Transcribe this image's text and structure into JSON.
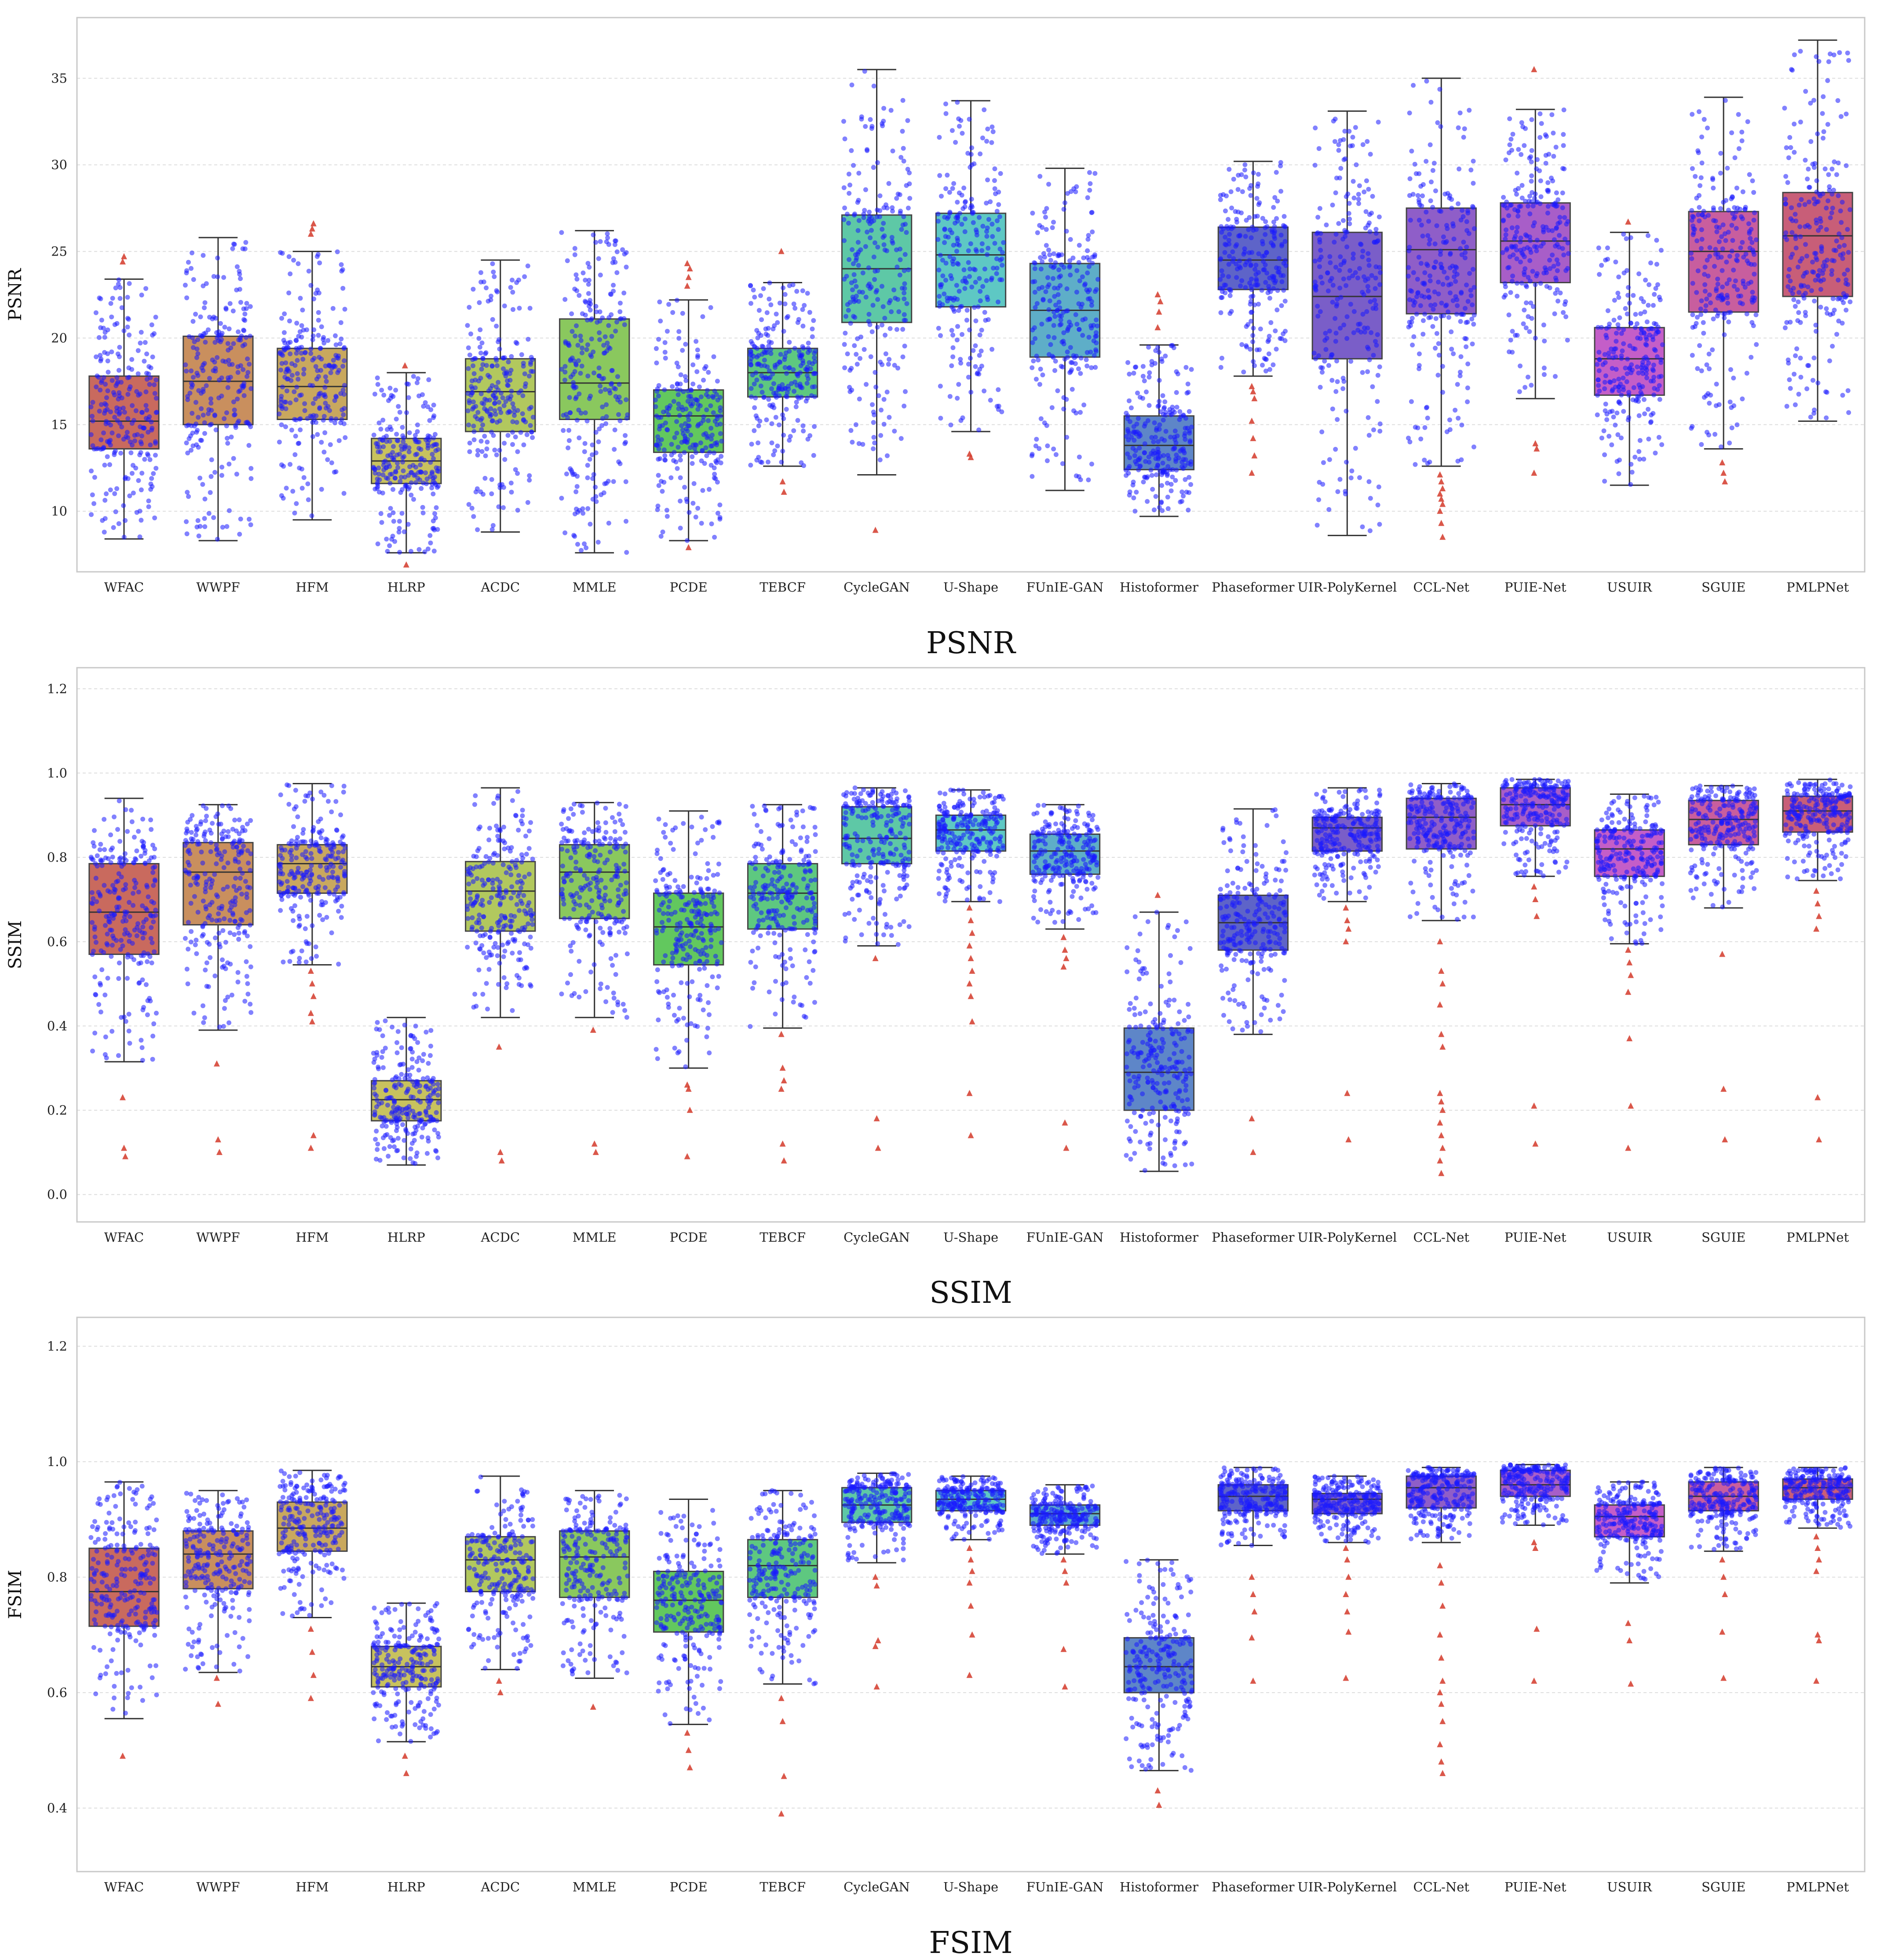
{
  "chart_data": [
    {
      "type": "box",
      "title": "PSNR",
      "ylabel": "PSNR",
      "ylim": [
        6.5,
        38.5
      ],
      "yticks": [
        10,
        15,
        20,
        25,
        30,
        35
      ],
      "grid": true,
      "categories": [
        "WFAC",
        "WWPF",
        "HFM",
        "HLRP",
        "ACDC",
        "MMLE",
        "PCDE",
        "TEBCF",
        "CycleGAN",
        "U-Shape",
        "FUnIE-GAN",
        "Histoformer",
        "Phaseformer",
        "UIR-PolyKernel",
        "CCL-Net",
        "PUIE-Net",
        "USUIR",
        "SGUIE",
        "PMLPNet"
      ],
      "colors": [
        "#c96a5e",
        "#c98f5e",
        "#c9a85e",
        "#c8c25e",
        "#b2c85e",
        "#8ac85e",
        "#62c85e",
        "#5ec880",
        "#5ec8a6",
        "#5ec8c4",
        "#5eaec8",
        "#5e86c8",
        "#5e64c8",
        "#7a5ec8",
        "#8f5ec8",
        "#a85ec8",
        "#c45ec8",
        "#c85e9e",
        "#c85e78"
      ],
      "series": [
        {
          "name": "WFAC",
          "q1": 13.6,
          "median": 15.2,
          "q3": 17.8,
          "whislo": 8.4,
          "whishi": 23.4,
          "outliers": [
            24.4,
            24.7
          ]
        },
        {
          "name": "WWPF",
          "q1": 15.0,
          "median": 17.5,
          "q3": 20.1,
          "whislo": 8.3,
          "whishi": 25.8,
          "outliers": []
        },
        {
          "name": "HFM",
          "q1": 15.3,
          "median": 17.2,
          "q3": 19.4,
          "whislo": 9.5,
          "whishi": 25.0,
          "outliers": [
            26.0,
            26.3,
            26.6
          ]
        },
        {
          "name": "HLRP",
          "q1": 11.6,
          "median": 12.9,
          "q3": 14.2,
          "whislo": 7.6,
          "whishi": 18.0,
          "outliers": [
            18.4,
            6.9
          ]
        },
        {
          "name": "ACDC",
          "q1": 14.6,
          "median": 16.9,
          "q3": 18.8,
          "whislo": 8.8,
          "whishi": 24.5,
          "outliers": []
        },
        {
          "name": "MMLE",
          "q1": 15.3,
          "median": 17.4,
          "q3": 21.1,
          "whislo": 7.6,
          "whishi": 26.2,
          "outliers": []
        },
        {
          "name": "PCDE",
          "q1": 13.4,
          "median": 15.5,
          "q3": 17.0,
          "whislo": 8.3,
          "whishi": 22.2,
          "outliers": [
            23.0,
            23.5,
            24.0,
            24.3,
            7.9
          ]
        },
        {
          "name": "TEBCF",
          "q1": 16.6,
          "median": 18.0,
          "q3": 19.4,
          "whislo": 12.6,
          "whishi": 23.2,
          "outliers": [
            25.0,
            11.7,
            11.1
          ]
        },
        {
          "name": "CycleGAN",
          "q1": 20.9,
          "median": 24.0,
          "q3": 27.1,
          "whislo": 12.1,
          "whishi": 35.5,
          "outliers": [
            8.9
          ]
        },
        {
          "name": "U-Shape",
          "q1": 21.8,
          "median": 24.8,
          "q3": 27.2,
          "whislo": 14.6,
          "whishi": 33.7,
          "outliers": [
            13.3,
            13.1
          ]
        },
        {
          "name": "FUnIE-GAN",
          "q1": 18.9,
          "median": 21.6,
          "q3": 24.3,
          "whislo": 11.2,
          "whishi": 29.8,
          "outliers": []
        },
        {
          "name": "Histoformer",
          "q1": 12.4,
          "median": 13.8,
          "q3": 15.5,
          "whislo": 9.7,
          "whishi": 19.6,
          "outliers": [
            20.6,
            21.5,
            22.1,
            22.5
          ]
        },
        {
          "name": "Phaseformer",
          "q1": 22.8,
          "median": 24.5,
          "q3": 26.4,
          "whislo": 17.8,
          "whishi": 30.2,
          "outliers": [
            17.2,
            16.9,
            16.5,
            15.2,
            14.2,
            13.2,
            12.2
          ]
        },
        {
          "name": "UIR-PolyKernel",
          "q1": 18.8,
          "median": 22.4,
          "q3": 26.1,
          "whislo": 8.6,
          "whishi": 33.1,
          "outliers": []
        },
        {
          "name": "CCL-Net",
          "q1": 21.4,
          "median": 25.1,
          "q3": 27.5,
          "whislo": 12.6,
          "whishi": 35.0,
          "outliers": [
            12.1,
            11.7,
            11.3,
            11.0,
            10.7,
            10.4,
            10.0,
            9.3,
            8.5
          ]
        },
        {
          "name": "PUIE-Net",
          "q1": 23.2,
          "median": 25.6,
          "q3": 27.8,
          "whislo": 16.5,
          "whishi": 33.2,
          "outliers": [
            35.5,
            13.9,
            13.6,
            12.2
          ]
        },
        {
          "name": "USUIR",
          "q1": 16.7,
          "median": 18.8,
          "q3": 20.6,
          "whislo": 11.5,
          "whishi": 26.1,
          "outliers": [
            26.7
          ]
        },
        {
          "name": "SGUIE",
          "q1": 21.5,
          "median": 25.0,
          "q3": 27.3,
          "whislo": 13.6,
          "whishi": 33.9,
          "outliers": [
            12.8,
            12.2,
            11.7
          ]
        },
        {
          "name": "PMLPNet",
          "q1": 22.4,
          "median": 25.9,
          "q3": 28.4,
          "whislo": 15.2,
          "whishi": 37.2,
          "outliers": []
        }
      ]
    },
    {
      "type": "box",
      "title": "SSIM",
      "ylabel": "SSIM",
      "ylim": [
        -0.065,
        1.25
      ],
      "yticks": [
        0.0,
        0.2,
        0.4,
        0.6,
        0.8,
        1.0,
        1.2
      ],
      "grid": true,
      "categories": [
        "WFAC",
        "WWPF",
        "HFM",
        "HLRP",
        "ACDC",
        "MMLE",
        "PCDE",
        "TEBCF",
        "CycleGAN",
        "U-Shape",
        "FUnIE-GAN",
        "Histoformer",
        "Phaseformer",
        "UIR-PolyKernel",
        "CCL-Net",
        "PUIE-Net",
        "USUIR",
        "SGUIE",
        "PMLPNet"
      ],
      "colors": [
        "#c96a5e",
        "#c98f5e",
        "#c9a85e",
        "#c8c25e",
        "#b2c85e",
        "#8ac85e",
        "#62c85e",
        "#5ec880",
        "#5ec8a6",
        "#5ec8c4",
        "#5eaec8",
        "#5e86c8",
        "#5e64c8",
        "#7a5ec8",
        "#8f5ec8",
        "#a85ec8",
        "#c45ec8",
        "#c85e9e",
        "#c85e78"
      ],
      "series": [
        {
          "name": "WFAC",
          "q1": 0.57,
          "median": 0.67,
          "q3": 0.785,
          "whislo": 0.315,
          "whishi": 0.94,
          "outliers": [
            0.23,
            0.11,
            0.09
          ]
        },
        {
          "name": "WWPF",
          "q1": 0.64,
          "median": 0.765,
          "q3": 0.835,
          "whislo": 0.39,
          "whishi": 0.925,
          "outliers": [
            0.31,
            0.13,
            0.1
          ]
        },
        {
          "name": "HFM",
          "q1": 0.715,
          "median": 0.785,
          "q3": 0.83,
          "whislo": 0.545,
          "whishi": 0.975,
          "outliers": [
            0.53,
            0.5,
            0.47,
            0.43,
            0.41,
            0.14,
            0.11
          ]
        },
        {
          "name": "HLRP",
          "q1": 0.175,
          "median": 0.225,
          "q3": 0.27,
          "whislo": 0.07,
          "whishi": 0.42,
          "outliers": []
        },
        {
          "name": "ACDC",
          "q1": 0.625,
          "median": 0.72,
          "q3": 0.79,
          "whislo": 0.42,
          "whishi": 0.965,
          "outliers": [
            0.35,
            0.1,
            0.08
          ]
        },
        {
          "name": "MMLE",
          "q1": 0.655,
          "median": 0.765,
          "q3": 0.83,
          "whislo": 0.42,
          "whishi": 0.93,
          "outliers": [
            0.39,
            0.12,
            0.1
          ]
        },
        {
          "name": "PCDE",
          "q1": 0.545,
          "median": 0.635,
          "q3": 0.715,
          "whislo": 0.3,
          "whishi": 0.91,
          "outliers": [
            0.26,
            0.25,
            0.2,
            0.09
          ]
        },
        {
          "name": "TEBCF",
          "q1": 0.63,
          "median": 0.715,
          "q3": 0.785,
          "whislo": 0.395,
          "whishi": 0.925,
          "outliers": [
            0.38,
            0.3,
            0.27,
            0.25,
            0.12,
            0.08
          ]
        },
        {
          "name": "CycleGAN",
          "q1": 0.785,
          "median": 0.845,
          "q3": 0.92,
          "whislo": 0.59,
          "whishi": 0.965,
          "outliers": [
            0.56,
            0.18,
            0.11
          ]
        },
        {
          "name": "U-Shape",
          "q1": 0.815,
          "median": 0.865,
          "q3": 0.9,
          "whislo": 0.695,
          "whishi": 0.96,
          "outliers": [
            0.68,
            0.65,
            0.62,
            0.59,
            0.56,
            0.53,
            0.5,
            0.47,
            0.41,
            0.24,
            0.14
          ]
        },
        {
          "name": "FUnIE-GAN",
          "q1": 0.76,
          "median": 0.815,
          "q3": 0.855,
          "whislo": 0.63,
          "whishi": 0.925,
          "outliers": [
            0.61,
            0.58,
            0.56,
            0.54,
            0.17,
            0.11
          ]
        },
        {
          "name": "Histoformer",
          "q1": 0.2,
          "median": 0.29,
          "q3": 0.395,
          "whislo": 0.055,
          "whishi": 0.67,
          "outliers": [
            0.71
          ]
        },
        {
          "name": "Phaseformer",
          "q1": 0.58,
          "median": 0.645,
          "q3": 0.71,
          "whislo": 0.38,
          "whishi": 0.915,
          "outliers": [
            0.18,
            0.1
          ]
        },
        {
          "name": "UIR-PolyKernel",
          "q1": 0.815,
          "median": 0.87,
          "q3": 0.895,
          "whislo": 0.695,
          "whishi": 0.965,
          "outliers": [
            0.68,
            0.65,
            0.63,
            0.6,
            0.24,
            0.13
          ]
        },
        {
          "name": "CCL-Net",
          "q1": 0.82,
          "median": 0.895,
          "q3": 0.94,
          "whislo": 0.65,
          "whishi": 0.975,
          "outliers": [
            0.6,
            0.53,
            0.5,
            0.45,
            0.38,
            0.35,
            0.24,
            0.22,
            0.2,
            0.17,
            0.14,
            0.11,
            0.08,
            0.05
          ]
        },
        {
          "name": "PUIE-Net",
          "q1": 0.875,
          "median": 0.925,
          "q3": 0.965,
          "whislo": 0.755,
          "whishi": 0.985,
          "outliers": [
            0.73,
            0.7,
            0.66,
            0.21,
            0.12
          ]
        },
        {
          "name": "USUIR",
          "q1": 0.755,
          "median": 0.82,
          "q3": 0.865,
          "whislo": 0.595,
          "whishi": 0.95,
          "outliers": [
            0.58,
            0.55,
            0.52,
            0.48,
            0.37,
            0.21,
            0.11
          ]
        },
        {
          "name": "SGUIE",
          "q1": 0.83,
          "median": 0.89,
          "q3": 0.935,
          "whislo": 0.68,
          "whishi": 0.97,
          "outliers": [
            0.57,
            0.25,
            0.13
          ]
        },
        {
          "name": "PMLPNet",
          "q1": 0.86,
          "median": 0.91,
          "q3": 0.945,
          "whislo": 0.745,
          "whishi": 0.985,
          "outliers": [
            0.72,
            0.69,
            0.66,
            0.63,
            0.23,
            0.13
          ]
        }
      ]
    },
    {
      "type": "box",
      "title": "FSIM",
      "ylabel": "FSIM",
      "ylim": [
        0.29,
        1.25
      ],
      "yticks": [
        0.4,
        0.6,
        0.8,
        1.0,
        1.2
      ],
      "grid": true,
      "categories": [
        "WFAC",
        "WWPF",
        "HFM",
        "HLRP",
        "ACDC",
        "MMLE",
        "PCDE",
        "TEBCF",
        "CycleGAN",
        "U-Shape",
        "FUnIE-GAN",
        "Histoformer",
        "Phaseformer",
        "UIR-PolyKernel",
        "CCL-Net",
        "PUIE-Net",
        "USUIR",
        "SGUIE",
        "PMLPNet"
      ],
      "colors": [
        "#c96a5e",
        "#c98f5e",
        "#c9a85e",
        "#c8c25e",
        "#b2c85e",
        "#8ac85e",
        "#62c85e",
        "#5ec880",
        "#5ec8a6",
        "#5ec8c4",
        "#5eaec8",
        "#5e86c8",
        "#5e64c8",
        "#7a5ec8",
        "#8f5ec8",
        "#a85ec8",
        "#c45ec8",
        "#c85e9e",
        "#c85e78"
      ],
      "series": [
        {
          "name": "WFAC",
          "q1": 0.715,
          "median": 0.775,
          "q3": 0.85,
          "whislo": 0.555,
          "whishi": 0.965,
          "outliers": [
            0.49
          ]
        },
        {
          "name": "WWPF",
          "q1": 0.78,
          "median": 0.84,
          "q3": 0.88,
          "whislo": 0.635,
          "whishi": 0.95,
          "outliers": [
            0.625,
            0.58
          ]
        },
        {
          "name": "HFM",
          "q1": 0.845,
          "median": 0.885,
          "q3": 0.93,
          "whislo": 0.73,
          "whishi": 0.985,
          "outliers": [
            0.71,
            0.67,
            0.63,
            0.59
          ]
        },
        {
          "name": "HLRP",
          "q1": 0.61,
          "median": 0.645,
          "q3": 0.68,
          "whislo": 0.515,
          "whishi": 0.755,
          "outliers": [
            0.49,
            0.46
          ]
        },
        {
          "name": "ACDC",
          "q1": 0.775,
          "median": 0.83,
          "q3": 0.87,
          "whislo": 0.64,
          "whishi": 0.975,
          "outliers": [
            0.62,
            0.6
          ]
        },
        {
          "name": "MMLE",
          "q1": 0.765,
          "median": 0.835,
          "q3": 0.88,
          "whislo": 0.625,
          "whishi": 0.95,
          "outliers": [
            0.575
          ]
        },
        {
          "name": "PCDE",
          "q1": 0.705,
          "median": 0.76,
          "q3": 0.81,
          "whislo": 0.545,
          "whishi": 0.935,
          "outliers": [
            0.53,
            0.5,
            0.47
          ]
        },
        {
          "name": "TEBCF",
          "q1": 0.765,
          "median": 0.82,
          "q3": 0.865,
          "whislo": 0.615,
          "whishi": 0.95,
          "outliers": [
            0.59,
            0.55,
            0.455,
            0.39
          ]
        },
        {
          "name": "CycleGAN",
          "q1": 0.895,
          "median": 0.925,
          "q3": 0.955,
          "whislo": 0.825,
          "whishi": 0.98,
          "outliers": [
            0.8,
            0.785,
            0.69,
            0.68,
            0.61
          ]
        },
        {
          "name": "U-Shape",
          "q1": 0.915,
          "median": 0.935,
          "q3": 0.95,
          "whislo": 0.865,
          "whishi": 0.975,
          "outliers": [
            0.85,
            0.83,
            0.81,
            0.79,
            0.75,
            0.7,
            0.63
          ]
        },
        {
          "name": "FUnIE-GAN",
          "q1": 0.89,
          "median": 0.91,
          "q3": 0.925,
          "whislo": 0.84,
          "whishi": 0.96,
          "outliers": [
            0.83,
            0.81,
            0.79,
            0.675,
            0.61
          ]
        },
        {
          "name": "Histoformer",
          "q1": 0.6,
          "median": 0.645,
          "q3": 0.695,
          "whislo": 0.465,
          "whishi": 0.83,
          "outliers": [
            0.43,
            0.405
          ]
        },
        {
          "name": "Phaseformer",
          "q1": 0.915,
          "median": 0.94,
          "q3": 0.96,
          "whislo": 0.855,
          "whishi": 0.99,
          "outliers": [
            0.8,
            0.77,
            0.74,
            0.695,
            0.62
          ]
        },
        {
          "name": "UIR-PolyKernel",
          "q1": 0.91,
          "median": 0.935,
          "q3": 0.945,
          "whislo": 0.86,
          "whishi": 0.975,
          "outliers": [
            0.85,
            0.83,
            0.8,
            0.77,
            0.74,
            0.705,
            0.625
          ]
        },
        {
          "name": "CCL-Net",
          "q1": 0.92,
          "median": 0.955,
          "q3": 0.975,
          "whislo": 0.86,
          "whishi": 0.99,
          "outliers": [
            0.82,
            0.79,
            0.75,
            0.7,
            0.66,
            0.62,
            0.6,
            0.58,
            0.55,
            0.51,
            0.48,
            0.46
          ]
        },
        {
          "name": "PUIE-Net",
          "q1": 0.94,
          "median": 0.96,
          "q3": 0.985,
          "whislo": 0.89,
          "whishi": 0.995,
          "outliers": [
            0.86,
            0.85,
            0.71,
            0.62
          ]
        },
        {
          "name": "USUIR",
          "q1": 0.87,
          "median": 0.905,
          "q3": 0.925,
          "whislo": 0.79,
          "whishi": 0.965,
          "outliers": [
            0.72,
            0.69,
            0.615
          ]
        },
        {
          "name": "SGUIE",
          "q1": 0.915,
          "median": 0.94,
          "q3": 0.965,
          "whislo": 0.845,
          "whishi": 0.99,
          "outliers": [
            0.83,
            0.8,
            0.77,
            0.705,
            0.625
          ]
        },
        {
          "name": "PMLPNet",
          "q1": 0.935,
          "median": 0.955,
          "q3": 0.97,
          "whislo": 0.885,
          "whishi": 0.99,
          "outliers": [
            0.87,
            0.85,
            0.83,
            0.81,
            0.7,
            0.69,
            0.62
          ]
        }
      ]
    }
  ]
}
